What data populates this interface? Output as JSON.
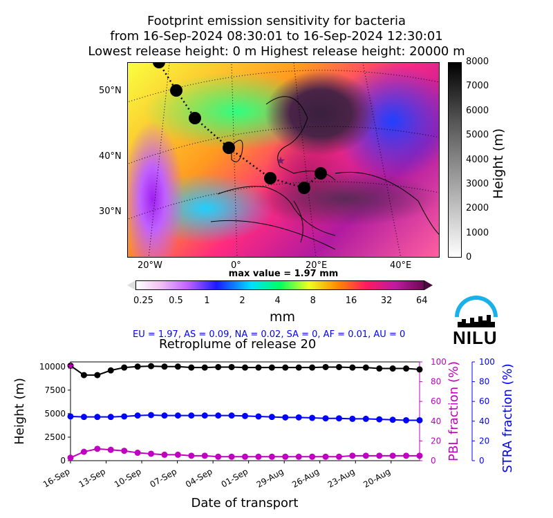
{
  "title": {
    "line1": "Footprint emission sensitivity for bacteria",
    "line2": "from 16-Sep-2024 08:30:01 to 16-Sep-2024 12:30:01",
    "line3": "Lowest release height: 0 m      Highest release height: 20000 m"
  },
  "map": {
    "lat_labels": [
      "50°N",
      "40°N",
      "30°N"
    ],
    "lon_labels": [
      "20°W",
      "0°",
      "20°E",
      "40°E"
    ]
  },
  "height_colorbar": {
    "label": "Height (m)",
    "ticks": [
      "8000",
      "7000",
      "6000",
      "5000",
      "4000",
      "3000",
      "2000",
      "1000",
      "0"
    ]
  },
  "sensitivity_colorbar": {
    "max_value_text": "max value = 1.97 mm",
    "unit": "mm",
    "ticks": [
      "0.25",
      "0.5",
      "1",
      "2",
      "4",
      "8",
      "16",
      "32",
      "64"
    ]
  },
  "region_summary": "EU = 1.97,  AS = 0.09,  NA = 0.02,  SA = 0,  AF = 0.01,  AU = 0",
  "logo": {
    "text": "NILU",
    "color": "#1ab0e8"
  },
  "chart_data": {
    "type": "line",
    "title": "Retroplume of release 20",
    "xlabel": "Date of transport",
    "ylabel": "Height (m)",
    "ylabel_right1": "PBL fraction (%)",
    "ylabel_right2": "STRA fraction (%)",
    "x_tick_labels": [
      "16-Sep",
      "13-Sep",
      "10-Sep",
      "07-Sep",
      "04-Sep",
      "01-Sep",
      "29-Aug",
      "26-Aug",
      "23-Aug",
      "20-Aug"
    ],
    "ylim": [
      0,
      10500
    ],
    "y_ticks": [
      "0",
      "2500",
      "5000",
      "7500",
      "10000"
    ],
    "right_ylim": [
      0,
      100
    ],
    "right_ticks": [
      "0",
      "20",
      "40",
      "60",
      "80",
      "100"
    ],
    "series": [
      {
        "axis": "left",
        "color": "#000000",
        "values": [
          10100,
          9100,
          9100,
          9600,
          9900,
          10000,
          10050,
          10000,
          10000,
          9900,
          9900,
          9950,
          9950,
          9900,
          9900,
          9900,
          9900,
          9900,
          9900,
          9950,
          9950,
          9900,
          9900,
          9800,
          9800,
          9800,
          9700
        ]
      },
      {
        "axis": "left",
        "color": "#0000ff",
        "values": [
          4700,
          4650,
          4650,
          4650,
          4700,
          4800,
          4850,
          4800,
          4800,
          4800,
          4800,
          4800,
          4800,
          4750,
          4700,
          4650,
          4600,
          4600,
          4550,
          4500,
          4500,
          4450,
          4450,
          4400,
          4350,
          4300,
          4300
        ]
      },
      {
        "axis": "pbl",
        "color": "#c000c0",
        "values": [
          3,
          9,
          12,
          11,
          10,
          8,
          7,
          6,
          6,
          5,
          5,
          4,
          4,
          4,
          4,
          4,
          4,
          4,
          4,
          4,
          4,
          5,
          5,
          5,
          5,
          5,
          5
        ]
      }
    ]
  }
}
